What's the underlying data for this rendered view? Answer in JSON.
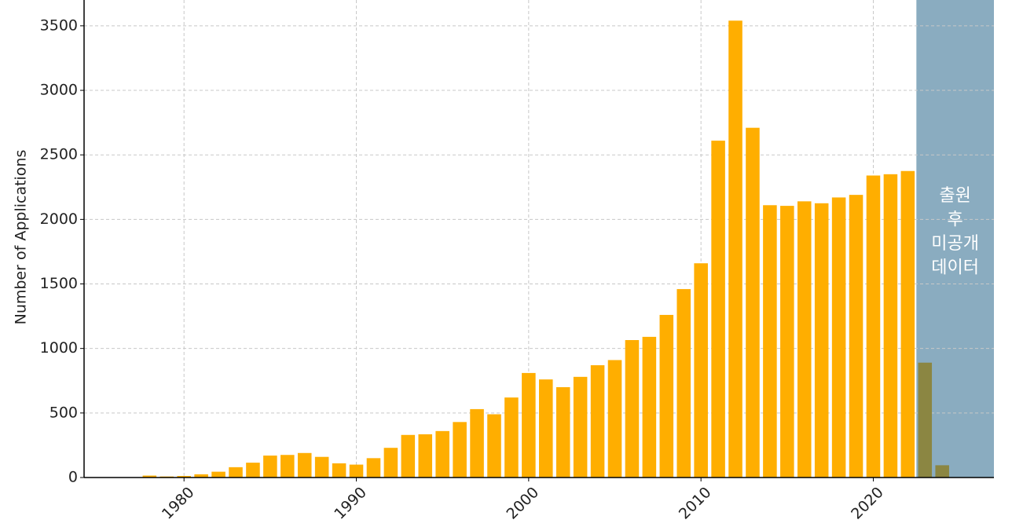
{
  "chart_data": {
    "type": "bar",
    "y_label": "Number of Applications",
    "x": [
      1978,
      1979,
      1980,
      1981,
      1982,
      1983,
      1984,
      1985,
      1986,
      1987,
      1988,
      1989,
      1990,
      1991,
      1992,
      1993,
      1994,
      1995,
      1996,
      1997,
      1998,
      1999,
      2000,
      2001,
      2002,
      2003,
      2004,
      2005,
      2006,
      2007,
      2008,
      2009,
      2010,
      2011,
      2012,
      2013,
      2014,
      2015,
      2016,
      2017,
      2018,
      2019,
      2020,
      2021,
      2022,
      2023,
      2024
    ],
    "values": [
      15,
      8,
      12,
      25,
      45,
      80,
      115,
      170,
      175,
      190,
      160,
      110,
      100,
      150,
      230,
      330,
      335,
      360,
      430,
      530,
      490,
      620,
      810,
      760,
      700,
      780,
      870,
      910,
      1065,
      1090,
      1260,
      1460,
      1660,
      2610,
      3540,
      2710,
      2110,
      2105,
      2140,
      2125,
      2170,
      2190,
      2340,
      2350,
      2375,
      890,
      95
    ],
    "color": "#ffae00",
    "xlim": [
      1974.2,
      2027
    ],
    "ylim": [
      0,
      3700
    ],
    "xticks": [
      1980,
      1990,
      2000,
      2010,
      2020
    ],
    "yticks": [
      0,
      500,
      1000,
      1500,
      2000,
      2500,
      3000,
      3500
    ],
    "grid": true,
    "shade": {
      "from": 2022.5,
      "color": "#8aacc0",
      "bar_color": "#8b8642",
      "label": [
        "출원",
        "후",
        "미공개",
        "데이터"
      ]
    }
  }
}
